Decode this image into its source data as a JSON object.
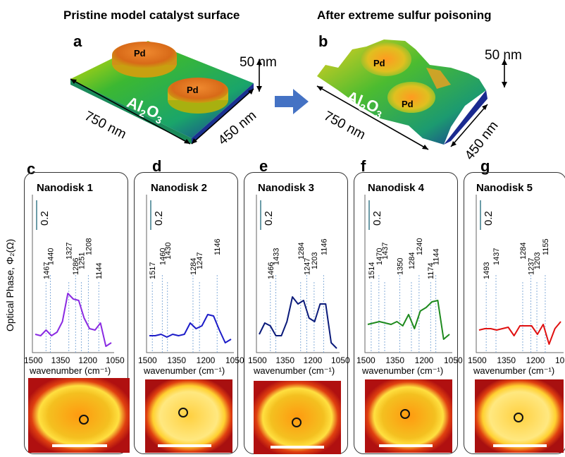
{
  "titles": {
    "left": "Pristine model catalyst surface",
    "right": "After extreme sulfur poisoning"
  },
  "letters": {
    "a": "a",
    "b": "b"
  },
  "topo": {
    "pd": "Pd",
    "al2o3_main": "Al",
    "al2o3_sub": "2",
    "al2o3_o": "O",
    "al2o3_sub2": "3",
    "height": "50 nm",
    "length": "750 nm",
    "width": "450 nm"
  },
  "ylabel": "Optical Phase, Φ₂(Ω)",
  "xlabel": "wavenumber (cm⁻¹)",
  "scale_label": "0.2",
  "xticks": [
    "1500",
    "1350",
    "1200",
    "1050"
  ],
  "panels": [
    {
      "letter": "c",
      "title": "Nanodisk 1",
      "color": "#8a2be2",
      "peaks": [
        "1467",
        "1440",
        "1327",
        "1286",
        "1251",
        "1208",
        "1144"
      ]
    },
    {
      "letter": "d",
      "title": "Nanodisk 2",
      "color": "#1c1cc8",
      "peaks": [
        "1517",
        "1460",
        "1430",
        "1284",
        "1247",
        "1146"
      ]
    },
    {
      "letter": "e",
      "title": "Nanodisk 3",
      "color": "#0a1a7a",
      "peaks": [
        "1466",
        "1433",
        "1284",
        "1247",
        "1203",
        "1146"
      ]
    },
    {
      "letter": "f",
      "title": "Nanodisk 4",
      "color": "#1e8a1e",
      "peaks": [
        "1514",
        "1470",
        "1437",
        "1350",
        "1284",
        "1240",
        "1174",
        "1144"
      ]
    },
    {
      "letter": "g",
      "title": "Nanodisk 5",
      "color": "#e01010",
      "peaks": [
        "1493",
        "1437",
        "1284",
        "1237",
        "1203",
        "1155"
      ]
    }
  ]
}
